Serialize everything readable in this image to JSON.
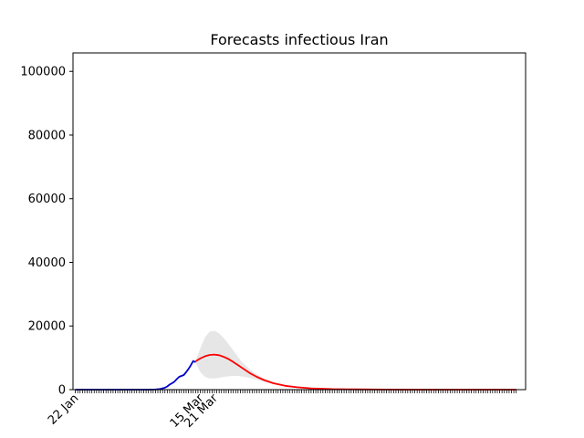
{
  "chart_data": {
    "type": "line",
    "title": "Forecasts infectious Iran",
    "xlabel": "",
    "ylabel": "",
    "ylim": [
      0,
      105800
    ],
    "yticks": [
      0,
      20000,
      40000,
      60000,
      80000,
      100000
    ],
    "ytick_labels": [
      "0",
      "20000",
      "40000",
      "60000",
      "80000",
      "100000"
    ],
    "xticks": [
      "2020-01-22",
      "2020-03-15",
      "2020-03-21"
    ],
    "xtick_labels": [
      "22 Jan",
      "15 Mar",
      "21 Mar"
    ],
    "xlim": [
      "2020-01-21",
      "2020-07-31"
    ],
    "grid": false,
    "colors": {
      "observed": "#0000cc",
      "forecast": "#ff0000",
      "band": "#e6e6e6"
    },
    "series": [
      {
        "role": "observed",
        "color": "#0000cc",
        "x": [
          "2020-01-22",
          "2020-02-01",
          "2020-02-10",
          "2020-02-19",
          "2020-02-22",
          "2020-02-25",
          "2020-02-27",
          "2020-02-29",
          "2020-03-01",
          "2020-03-02",
          "2020-03-03",
          "2020-03-04",
          "2020-03-05",
          "2020-03-06",
          "2020-03-07",
          "2020-03-08",
          "2020-03-09",
          "2020-03-10",
          "2020-03-11",
          "2020-03-12",
          "2020-03-13"
        ],
        "values": [
          0,
          0,
          0,
          0,
          5,
          50,
          200,
          600,
          1000,
          1600,
          2000,
          2500,
          3300,
          4000,
          4300,
          4600,
          5500,
          6500,
          7700,
          9000,
          8600
        ]
      },
      {
        "role": "forecast",
        "color": "#ff0000",
        "x": [
          "2020-03-13",
          "2020-03-15",
          "2020-03-17",
          "2020-03-19",
          "2020-03-21",
          "2020-03-23",
          "2020-03-25",
          "2020-03-27",
          "2020-03-29",
          "2020-03-31",
          "2020-04-02",
          "2020-04-05",
          "2020-04-08",
          "2020-04-11",
          "2020-04-15",
          "2020-04-20",
          "2020-04-25",
          "2020-05-01",
          "2020-05-10",
          "2020-05-20",
          "2020-06-01",
          "2020-06-15",
          "2020-07-01",
          "2020-07-27"
        ],
        "values": [
          8900,
          9800,
          10500,
          10900,
          11000,
          10800,
          10300,
          9600,
          8700,
          7700,
          6700,
          5200,
          4000,
          3000,
          2000,
          1200,
          750,
          400,
          180,
          80,
          30,
          10,
          3,
          0
        ]
      }
    ],
    "band": {
      "x": [
        "2020-03-13",
        "2020-03-15",
        "2020-03-17",
        "2020-03-19",
        "2020-03-21",
        "2020-03-23",
        "2020-03-25",
        "2020-03-27",
        "2020-03-29",
        "2020-03-31",
        "2020-04-02",
        "2020-04-05",
        "2020-04-08",
        "2020-04-11",
        "2020-04-15",
        "2020-04-20",
        "2020-04-25",
        "2020-05-01",
        "2020-05-10",
        "2020-05-20",
        "2020-06-01",
        "2020-06-15",
        "2020-07-01",
        "2020-07-27"
      ],
      "upper": [
        9200,
        13000,
        16500,
        18200,
        18500,
        17700,
        16200,
        14300,
        12300,
        10300,
        8500,
        6400,
        4800,
        3500,
        2400,
        1400,
        850,
        450,
        200,
        90,
        35,
        12,
        4,
        0
      ],
      "lower": [
        8600,
        5500,
        4000,
        3500,
        3500,
        3700,
        4000,
        4200,
        4300,
        4300,
        4100,
        3700,
        3100,
        2500,
        1800,
        1050,
        650,
        350,
        160,
        70,
        25,
        8,
        2,
        0
      ]
    }
  }
}
